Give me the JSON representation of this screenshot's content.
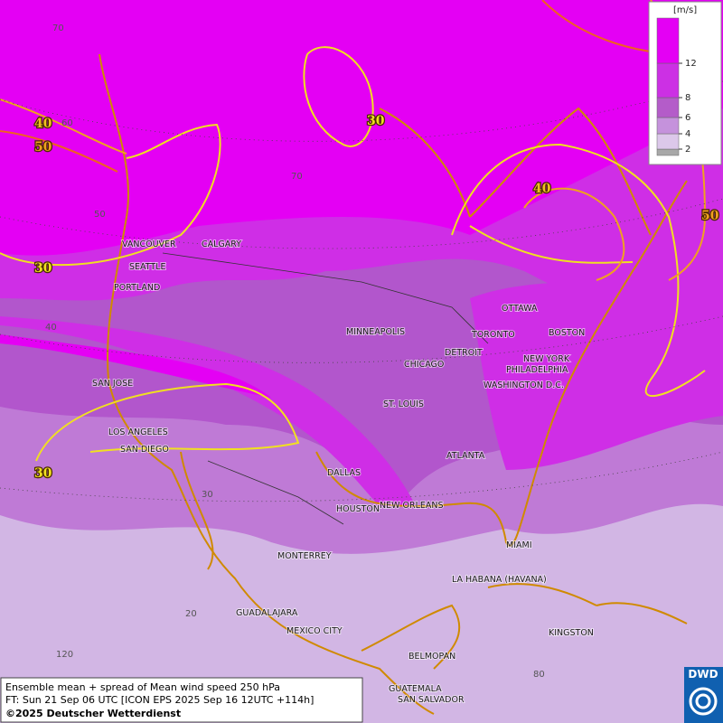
{
  "cities": [
    "VANCOUVER",
    "CALGARY",
    "SEATTLE",
    "PORTLAND",
    "MINNEAPOLIS",
    "TORONTO",
    "OTTAWA",
    "DETROIT",
    "CHICAGO",
    "BOSTON",
    "NEW YORK",
    "PHILADELPHIA",
    "WASHINGTON D.C.",
    "SAN JOSE",
    "ST. LOUIS",
    "LOS ANGELES",
    "SAN DIEGO",
    "ATLANTA",
    "DALLAS",
    "HOUSTON",
    "NEW ORLEANS",
    "MIAMI",
    "MONTERREY",
    "LA HABANA (HAVANA)",
    "GUADALAJARA",
    "MEXICO CITY",
    "KINGSTON",
    "BELMOPAN",
    "GUATEMALA",
    "SAN SALVADOR"
  ],
  "contour_labels": [
    40,
    50,
    30,
    40,
    50,
    30,
    30
  ],
  "grid_labels": [
    70,
    70,
    60,
    50,
    40,
    30,
    20,
    120,
    80
  ],
  "legend": {
    "unit": "[m/s]",
    "levels": [
      2,
      4,
      6,
      8,
      12
    ],
    "colors": [
      "#a8a8a8",
      "#dcc8ea",
      "#c592dc",
      "#b45cc9",
      "#cc30e4",
      "#e400f4"
    ]
  },
  "footer": [
    "Ensemble mean + spread of Mean wind speed 250 hPa",
    "FT: Sun 21 Sep 06 UTC [ICON EPS 2025 Sep 16 12UTC +114h]",
    "©2025 Deutscher Wetterdienst"
  ],
  "logo": "DWD"
}
